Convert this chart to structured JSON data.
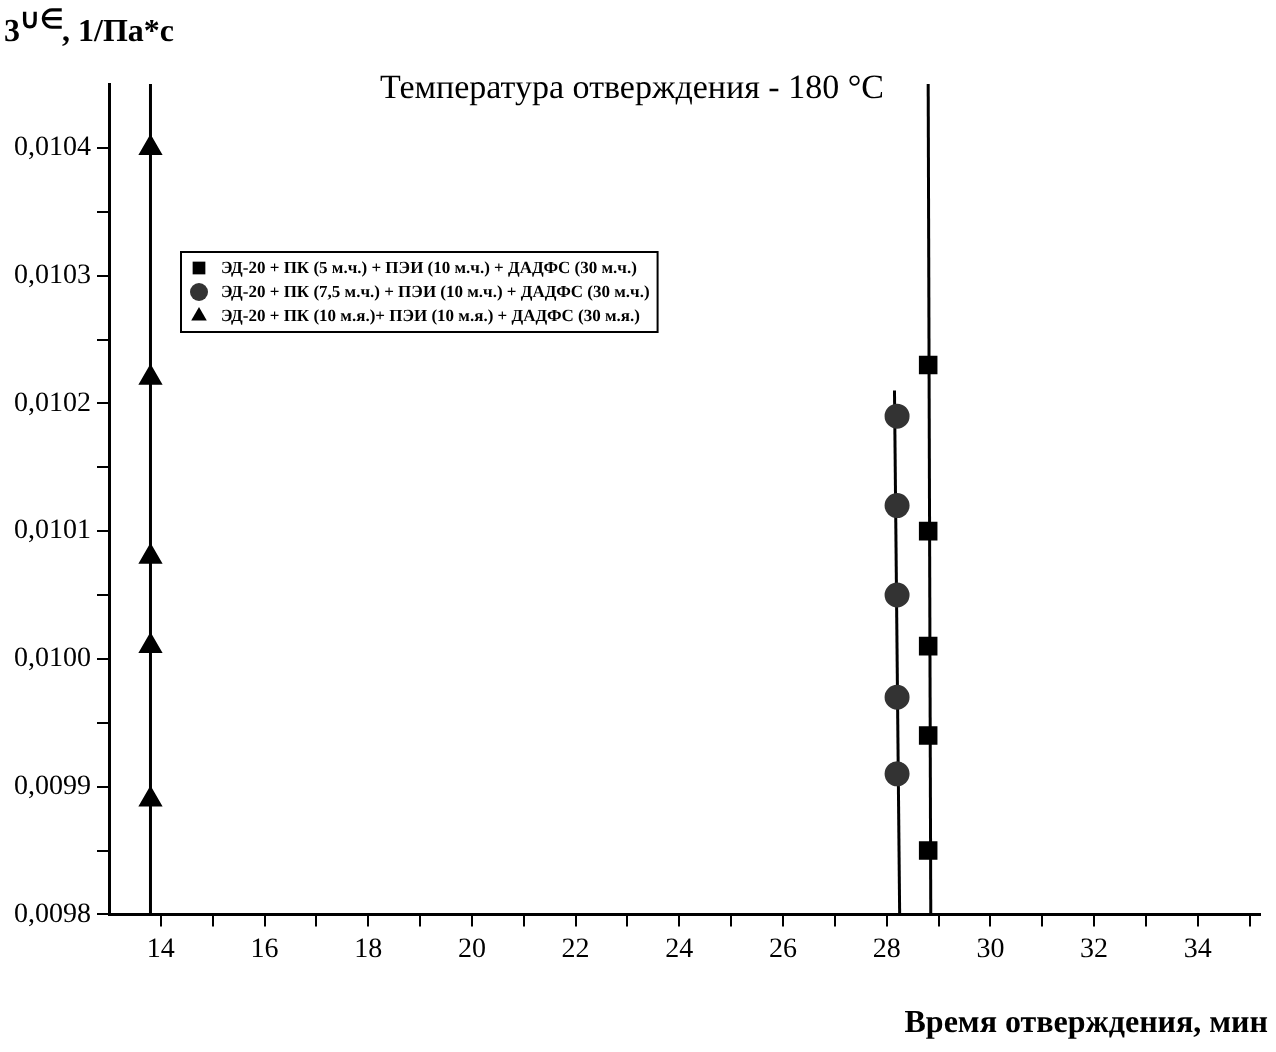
{
  "chart_data": {
    "type": "scatter",
    "title": "Температура отверждения - 180 °C",
    "xlabel": "Время отверждения, мин",
    "ylabel": "3$^{∪∈}$, 1/Па*с",
    "xlim": [
      13,
      35.2
    ],
    "xticks": [
      14,
      {
        "value": 15,
        "label": null
      },
      16,
      {
        "value": 17,
        "label": null
      },
      18,
      {
        "value": 19,
        "label": null
      },
      20,
      {
        "value": 21,
        "label": null
      },
      22,
      {
        "value": 23,
        "label": null
      },
      24,
      {
        "value": 25,
        "label": null
      },
      26,
      {
        "value": 27,
        "label": null
      },
      28,
      {
        "value": 29,
        "label": null
      },
      30,
      {
        "value": 31,
        "label": null
      },
      32,
      {
        "value": 33,
        "label": null
      },
      34,
      {
        "value": 35,
        "label": null
      }
    ],
    "ylim": [
      0.0098,
      0.01045
    ],
    "yticks": [
      {
        "value": 0.0098,
        "label": "0,0098"
      },
      {
        "value": 0.00985,
        "label": null
      },
      {
        "value": 0.0099,
        "label": "0,0099"
      },
      {
        "value": 0.00995,
        "label": null
      },
      {
        "value": 0.01,
        "label": "0,0100"
      },
      {
        "value": 0.01005,
        "label": null
      },
      {
        "value": 0.0101,
        "label": "0,0101"
      },
      {
        "value": 0.01015,
        "label": null
      },
      {
        "value": 0.0102,
        "label": "0,0102"
      },
      {
        "value": 0.01025,
        "label": null
      },
      {
        "value": 0.0103,
        "label": "0,0103"
      },
      {
        "value": 0.01035,
        "label": null
      },
      {
        "value": 0.0104,
        "label": "0,0104"
      }
    ],
    "grid": false,
    "legend": "top left",
    "series": [
      {
        "name": "ЭД-20 + ПК (5 м.ч.) + ПЭИ (10 м.ч.) + ДАДФС (30 м.ч.)",
        "color": "#000000",
        "marker": "square",
        "x": [
          28.8,
          28.8,
          28.8,
          28.8,
          28.8
        ],
        "values": [
          0.01023,
          0.0101,
          0.01001,
          0.00994,
          0.00985
        ]
      },
      {
        "name": "ЭД-20 + ПК (7,5 м.ч.) + ПЭИ (10 м.ч.) + ДАДФС (30 м.ч.)",
        "color": "#333333",
        "marker": "circle",
        "x": [
          28.2,
          28.2,
          28.2,
          28.2,
          28.2
        ],
        "values": [
          0.01019,
          0.01012,
          0.01005,
          0.00997,
          0.00991
        ]
      },
      {
        "name": "ЭД-20 + ПК (10 м.я.)+ ПЭИ (10 м.я.) + ДАДФС (30 м.я.)",
        "color": "#000000",
        "marker": "triangle",
        "x": [
          13.8,
          13.8,
          13.8,
          13.8,
          13.8
        ],
        "values": [
          0.0104,
          0.01022,
          0.01008,
          0.01001,
          0.00989
        ]
      },
      {
        "type": "line",
        "color": "#000000",
        "marker": "none",
        "x": [
          28.85,
          28.8
        ],
        "values": [
          0.0098,
          0.01045
        ]
      },
      {
        "type": "line",
        "color": "#000000",
        "marker": "none",
        "x": [
          28.25,
          28.15
        ],
        "values": [
          0.0098,
          0.01021
        ]
      },
      {
        "type": "line",
        "color": "#000000",
        "marker": "none",
        "x": [
          13.8,
          13.8
        ],
        "values": [
          0.0098,
          0.01045
        ]
      }
    ]
  }
}
